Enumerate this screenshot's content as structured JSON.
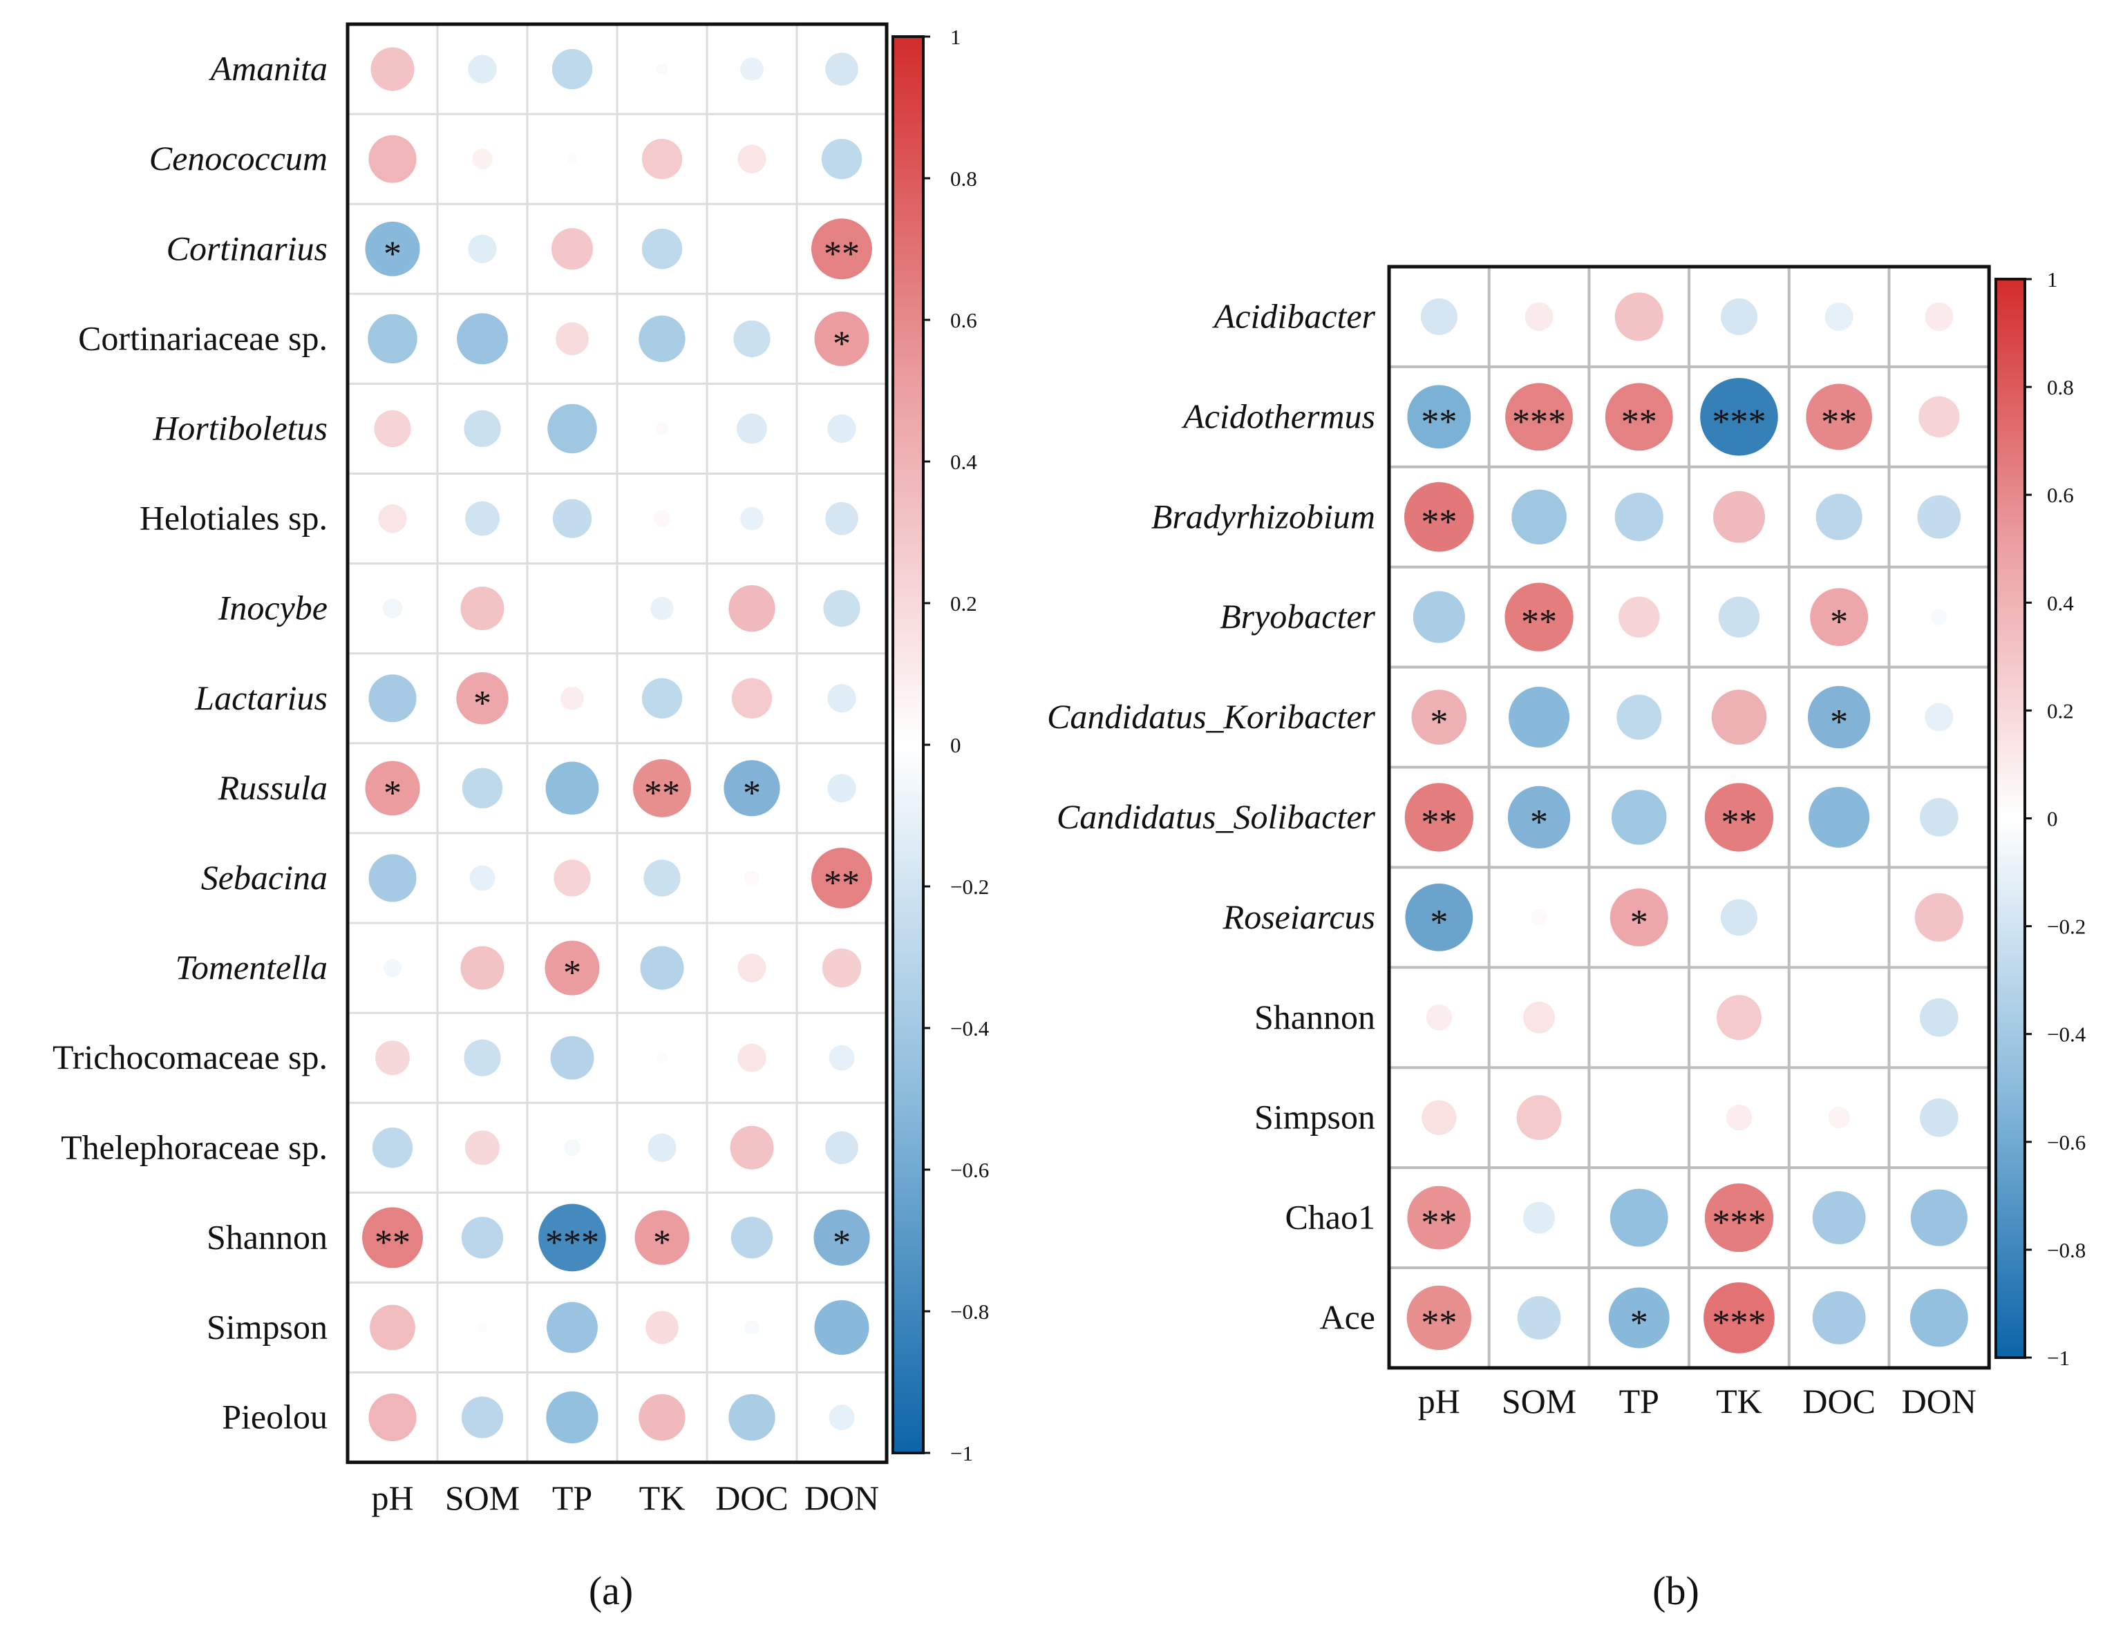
{
  "chart_data": [
    {
      "type": "heatmap",
      "subtype": "correlation-circle",
      "panel_label": "(a)",
      "columns": [
        "pH",
        "SOM",
        "TP",
        "TK",
        "DOC",
        "DON"
      ],
      "colorbar": {
        "range": [
          -1,
          1
        ],
        "ticks": [
          "1",
          "0.8",
          "0.6",
          "0.4",
          "0.2",
          "0",
          "−0.2",
          "−0.4",
          "−0.6",
          "−0.8",
          "−1"
        ],
        "tick_values": [
          1,
          0.8,
          0.6,
          0.4,
          0.2,
          0,
          -0.2,
          -0.4,
          -0.6,
          -0.8,
          -1
        ]
      },
      "rows": [
        {
          "label": "Amanita",
          "italic": true,
          "values": [
            0.35,
            -0.15,
            -0.3,
            -0.03,
            -0.1,
            -0.2
          ],
          "stars": [
            "",
            "",
            "",
            "",
            "",
            ""
          ]
        },
        {
          "label": "Cenococcum",
          "italic": true,
          "values": [
            0.42,
            0.08,
            0.02,
            0.3,
            0.15,
            -0.3
          ],
          "stars": [
            "",
            "",
            "",
            "",
            "",
            ""
          ]
        },
        {
          "label": "Cortinarius",
          "italic": true,
          "values": [
            -0.55,
            -0.15,
            0.32,
            -0.3,
            0.01,
            0.68
          ],
          "stars": [
            "*",
            "",
            "",
            "",
            "",
            "**"
          ]
        },
        {
          "label": "Cortinariaceae sp.",
          "italic": false,
          "values": [
            -0.45,
            -0.48,
            0.2,
            -0.4,
            -0.25,
            0.55
          ],
          "stars": [
            "",
            "",
            "",
            "",
            "",
            "*"
          ]
        },
        {
          "label": "Hortiboletus",
          "italic": true,
          "values": [
            0.25,
            -0.25,
            -0.45,
            0.03,
            -0.17,
            -0.15
          ],
          "stars": [
            "",
            "",
            "",
            "",
            "",
            ""
          ]
        },
        {
          "label": "Helotiales sp.",
          "italic": false,
          "values": [
            0.15,
            -0.22,
            -0.28,
            0.05,
            -0.1,
            -0.2
          ],
          "stars": [
            "",
            "",
            "",
            "",
            "",
            ""
          ]
        },
        {
          "label": "Inocybe",
          "italic": true,
          "values": [
            -0.07,
            0.35,
            0.01,
            -0.1,
            0.4,
            -0.25
          ],
          "stars": [
            "",
            "",
            "",
            "",
            "",
            ""
          ]
        },
        {
          "label": "Lactarius",
          "italic": true,
          "values": [
            -0.42,
            0.5,
            0.1,
            -0.3,
            0.3,
            -0.15
          ],
          "stars": [
            "",
            "*",
            "",
            "",
            "",
            ""
          ]
        },
        {
          "label": "Russula",
          "italic": true,
          "values": [
            0.55,
            -0.3,
            -0.52,
            0.62,
            -0.58,
            -0.15
          ],
          "stars": [
            "*",
            "",
            "",
            "**",
            "*",
            ""
          ]
        },
        {
          "label": "Sebacina",
          "italic": true,
          "values": [
            -0.42,
            -0.12,
            0.25,
            -0.25,
            0.04,
            0.68
          ],
          "stars": [
            "",
            "",
            "",
            "",
            "",
            "**"
          ]
        },
        {
          "label": "Tomentella",
          "italic": true,
          "values": [
            -0.06,
            0.35,
            0.55,
            -0.35,
            0.15,
            0.28
          ],
          "stars": [
            "",
            "",
            "*",
            "",
            "",
            ""
          ]
        },
        {
          "label": "Trichocomaceae sp.",
          "italic": false,
          "values": [
            0.22,
            -0.25,
            -0.35,
            0.02,
            0.15,
            -0.12
          ],
          "stars": [
            "",
            "",
            "",
            "",
            "",
            ""
          ]
        },
        {
          "label": "Thelephoraceae sp.",
          "italic": false,
          "values": [
            -0.3,
            0.22,
            -0.05,
            -0.15,
            0.35,
            -0.2
          ],
          "stars": [
            "",
            "",
            "",
            "",
            "",
            ""
          ]
        },
        {
          "label": "Shannon",
          "italic": false,
          "values": [
            0.68,
            -0.32,
            -0.84,
            0.55,
            -0.32,
            -0.58
          ],
          "stars": [
            "**",
            "",
            "***",
            "*",
            "",
            "*"
          ]
        },
        {
          "label": "Simpson",
          "italic": false,
          "values": [
            0.38,
            0.02,
            -0.48,
            0.2,
            -0.04,
            -0.55
          ],
          "stars": [
            "",
            "",
            "",
            "",
            "",
            ""
          ]
        },
        {
          "label": "Pieolou",
          "italic": false,
          "values": [
            0.42,
            -0.32,
            -0.5,
            0.4,
            -0.4,
            -0.12
          ],
          "stars": [
            "",
            "",
            "",
            "",
            "",
            ""
          ]
        }
      ]
    },
    {
      "type": "heatmap",
      "subtype": "correlation-circle",
      "panel_label": "(b)",
      "columns": [
        "pH",
        "SOM",
        "TP",
        "TK",
        "DOC",
        "DON"
      ],
      "colorbar": {
        "range": [
          -1,
          1
        ],
        "ticks": [
          "1",
          "0.8",
          "0.6",
          "0.4",
          "0.2",
          "0",
          "−0.2",
          "−0.4",
          "−0.6",
          "−0.8",
          "−1"
        ],
        "tick_values": [
          1,
          0.8,
          0.6,
          0.4,
          0.2,
          0,
          -0.2,
          -0.4,
          -0.6,
          -0.8,
          -1
        ]
      },
      "rows": [
        {
          "label": "Acidibacter",
          "italic": true,
          "values": [
            -0.2,
            0.12,
            0.35,
            -0.2,
            -0.12,
            0.12
          ],
          "stars": [
            "",
            "",
            "",
            "",
            "",
            ""
          ]
        },
        {
          "label": "Acidothermus",
          "italic": true,
          "values": [
            -0.6,
            0.68,
            0.68,
            -0.9,
            0.65,
            0.25
          ],
          "stars": [
            "**",
            "***",
            "**",
            "***",
            "**",
            ""
          ]
        },
        {
          "label": "Bradyrhizobium",
          "italic": true,
          "values": [
            0.72,
            -0.45,
            -0.35,
            0.4,
            -0.32,
            -0.28
          ],
          "stars": [
            "**",
            "",
            "",
            "",
            "",
            ""
          ]
        },
        {
          "label": "Bryobacter",
          "italic": true,
          "values": [
            -0.4,
            0.7,
            0.25,
            -0.25,
            0.5,
            -0.04
          ],
          "stars": [
            "",
            "**",
            "",
            "",
            "*",
            ""
          ]
        },
        {
          "label": "Candidatus_Koribacter",
          "italic": true,
          "values": [
            0.45,
            -0.55,
            -0.3,
            0.45,
            -0.58,
            -0.12
          ],
          "stars": [
            "*",
            "",
            "",
            "",
            "*",
            ""
          ]
        },
        {
          "label": "Candidatus_Solibacter",
          "italic": true,
          "values": [
            0.7,
            -0.58,
            -0.45,
            0.7,
            -0.55,
            -0.22
          ],
          "stars": [
            "**",
            "*",
            "",
            "**",
            "",
            ""
          ]
        },
        {
          "label": "Roseiarcus",
          "italic": true,
          "values": [
            -0.68,
            0.04,
            0.5,
            -0.2,
            0.0,
            0.35
          ],
          "stars": [
            "*",
            "",
            "*",
            "",
            "",
            ""
          ]
        },
        {
          "label": "Shannon",
          "italic": false,
          "values": [
            0.1,
            0.15,
            0.01,
            0.3,
            0.01,
            -0.22
          ],
          "stars": [
            "",
            "",
            "",
            "",
            "",
            ""
          ]
        },
        {
          "label": "Simpson",
          "italic": false,
          "values": [
            0.18,
            0.3,
            0.0,
            0.1,
            0.07,
            -0.22
          ],
          "stars": [
            "",
            "",
            "",
            "",
            "",
            ""
          ]
        },
        {
          "label": "Chao1",
          "italic": false,
          "values": [
            0.6,
            -0.15,
            -0.5,
            0.7,
            -0.42,
            -0.48
          ],
          "stars": [
            "**",
            "",
            "",
            "***",
            "",
            ""
          ]
        },
        {
          "label": "Ace",
          "italic": false,
          "values": [
            0.62,
            -0.28,
            -0.55,
            0.75,
            -0.42,
            -0.5
          ],
          "stars": [
            "**",
            "",
            "*",
            "***",
            "",
            ""
          ]
        }
      ]
    }
  ],
  "colors": {
    "neg_end": "#0b64a8",
    "neg_mid": "#8bbbdc",
    "zero": "#ffffff",
    "pos_mid": "#eba0a3",
    "pos_end": "#d32c2c"
  }
}
